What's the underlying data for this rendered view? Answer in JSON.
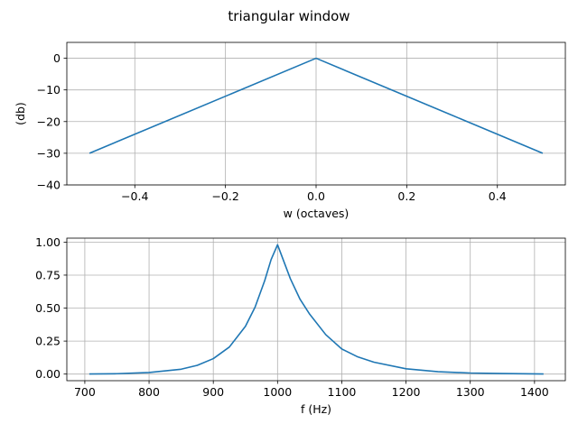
{
  "figure": {
    "title": "triangular window"
  },
  "chart_data": [
    {
      "type": "line",
      "xlabel": "w (octaves)",
      "ylabel": "(db)",
      "xlim": [
        -0.55,
        0.55
      ],
      "ylim": [
        -40,
        5
      ],
      "xticks": [
        -0.4,
        -0.2,
        0.0,
        0.2,
        0.4
      ],
      "xtick_labels": [
        "−0.4",
        "−0.2",
        "0.0",
        "0.2",
        "0.4"
      ],
      "yticks": [
        0,
        -10,
        -20,
        -30,
        -40
      ],
      "ytick_labels": [
        "0",
        "−10",
        "−20",
        "−30",
        "−40"
      ],
      "grid": true,
      "series": [
        {
          "color": "#1f77b4",
          "x": [
            -0.5,
            0.0,
            0.5
          ],
          "y": [
            -30,
            0,
            -30
          ]
        }
      ]
    },
    {
      "type": "line",
      "xlabel": "f (Hz)",
      "ylabel": "",
      "xlim": [
        672,
        1448
      ],
      "ylim": [
        -0.05,
        1.03
      ],
      "xticks": [
        700,
        800,
        900,
        1000,
        1100,
        1200,
        1300,
        1400
      ],
      "xtick_labels": [
        "700",
        "800",
        "900",
        "1000",
        "1100",
        "1200",
        "1300",
        "1400"
      ],
      "yticks": [
        0.0,
        0.25,
        0.5,
        0.75,
        1.0
      ],
      "ytick_labels": [
        "0.00",
        "0.25",
        "0.50",
        "0.75",
        "1.00"
      ],
      "grid": true,
      "series": [
        {
          "color": "#1f77b4",
          "x": [
            707,
            750,
            800,
            850,
            875,
            900,
            925,
            950,
            965,
            980,
            990,
            1000,
            1010,
            1020,
            1035,
            1050,
            1075,
            1100,
            1125,
            1150,
            1200,
            1250,
            1300,
            1350,
            1414
          ],
          "y": [
            0.001,
            0.003,
            0.012,
            0.037,
            0.066,
            0.117,
            0.205,
            0.362,
            0.507,
            0.708,
            0.868,
            0.98,
            0.851,
            0.722,
            0.567,
            0.454,
            0.299,
            0.19,
            0.13,
            0.09,
            0.04,
            0.018,
            0.008,
            0.004,
            0.001
          ]
        }
      ]
    }
  ]
}
